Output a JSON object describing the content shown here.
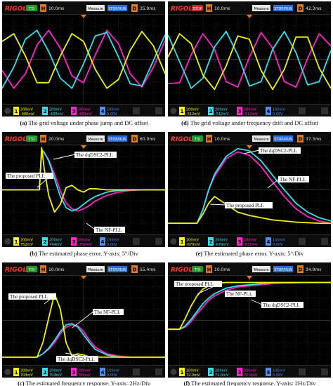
{
  "scope": {
    "brand": "RIGOL",
    "run_states": [
      "T'D",
      "STOP",
      "T'D",
      "T'D",
      "T'D",
      "T'D"
    ],
    "measure_label": "Measure",
    "stop_run_label": "STOP/RUN",
    "colors": {
      "ch1": "#f2f20a",
      "ch2": "#2ee2ee",
      "ch3": "#ff22cc",
      "grid": "#3a3a3a",
      "grid_axis": "#5e5e5e"
    }
  },
  "panels": [
    {
      "id": "a",
      "timebase": "10.0ms",
      "delay": "35.9ms",
      "channels": [
        {
          "n": "1",
          "scale": "200mV",
          "offset": "-480mV",
          "color": "#f2f20a"
        },
        {
          "n": "2",
          "scale": "200mV",
          "offset": "-480mV",
          "color": "#2ee2ee"
        },
        {
          "n": "3",
          "scale": "200mV",
          "offset": "-480mV",
          "color": "#ff22cc"
        },
        {
          "n": "4",
          "scale": "100mV",
          "offset": "0.00V",
          "color": "#4a8cf0"
        }
      ],
      "caption_id": "(a)",
      "caption_text": "The grid voltage under phase jump and DC offset",
      "labels": []
    },
    {
      "id": "d",
      "timebase": "10.0ms",
      "delay": "42.3ms",
      "channels": [
        {
          "n": "1",
          "scale": "200mV",
          "offset": "-512mV",
          "color": "#f2f20a"
        },
        {
          "n": "2",
          "scale": "200mV",
          "offset": "-512mV",
          "color": "#2ee2ee"
        },
        {
          "n": "3",
          "scale": "200mV",
          "offset": "-512mV",
          "color": "#ff22cc"
        },
        {
          "n": "4",
          "scale": "100mV",
          "offset": "0.00V",
          "color": "#4a8cf0"
        }
      ],
      "caption_id": "(d)",
      "caption_text": "The grid voltage under frequency drift and DC offset",
      "labels": []
    },
    {
      "id": "b",
      "timebase": "20.0ms",
      "delay": "60.0ms",
      "channels": [
        {
          "n": "1",
          "scale": "200mV",
          "offset": "752mV",
          "color": "#f2f20a"
        },
        {
          "n": "2",
          "scale": "200mV",
          "offset": "744mV",
          "color": "#2ee2ee"
        },
        {
          "n": "3",
          "scale": "200mV",
          "offset": "-752mV",
          "color": "#ff22cc"
        },
        {
          "n": "4",
          "scale": "100mV",
          "offset": "0.00V",
          "color": "#4a8cf0"
        }
      ],
      "caption_id": "(b)",
      "caption_text": "The estimated phase error. Y-axis: 5°/Div",
      "labels": [
        "The dqDSC2-PLL",
        "The proposed PLL",
        "The NF-PLL"
      ]
    },
    {
      "id": "e",
      "timebase": "10.0ms",
      "delay": "37.3ms",
      "channels": [
        {
          "n": "1",
          "scale": "200mV",
          "offset": "-679mV",
          "color": "#f2f20a"
        },
        {
          "n": "2",
          "scale": "200mV",
          "offset": "-679mV",
          "color": "#2ee2ee"
        },
        {
          "n": "3",
          "scale": "200mV",
          "offset": "-672mV",
          "color": "#ff22cc"
        },
        {
          "n": "4",
          "scale": "100mV",
          "offset": "0.00V",
          "color": "#4a8cf0"
        }
      ],
      "caption_id": "(e)",
      "caption_text": "The estimated phase error. Y-axis: 5°/Div",
      "labels": [
        "The dqDSC2-PLL",
        "The NF-PLL",
        "The proposed PLL"
      ]
    },
    {
      "id": "c",
      "timebase": "10.0ms",
      "delay": "55.4ms",
      "channels": [
        {
          "n": "1",
          "scale": "200mV",
          "offset": "704mV",
          "color": "#f2f20a"
        },
        {
          "n": "2",
          "scale": "200mV",
          "offset": "704mV",
          "color": "#2ee2ee"
        },
        {
          "n": "3",
          "scale": "200mV",
          "offset": "704mV",
          "color": "#ff22cc"
        },
        {
          "n": "4",
          "scale": "100mV",
          "offset": "0.00V",
          "color": "#4a8cf0"
        }
      ],
      "caption_id": "(c)",
      "caption_text": "The estimated frequency response. Y-axis: 2Hz/Div",
      "labels": [
        "The proposed PLL",
        "The NF-PLL",
        "The dqDSC2-PLL"
      ]
    },
    {
      "id": "f",
      "timebase": "10.0ms",
      "delay": "34.9ms",
      "channels": [
        {
          "n": "1",
          "scale": "200mV",
          "offset": "72.0mV",
          "color": "#f2f20a"
        },
        {
          "n": "2",
          "scale": "200mV",
          "offset": "72.0mV",
          "color": "#2ee2ee"
        },
        {
          "n": "3",
          "scale": "200mV",
          "offset": "72.0mV",
          "color": "#ff22cc"
        },
        {
          "n": "4",
          "scale": "100mV",
          "offset": "0.00V",
          "color": "#4a8cf0"
        }
      ],
      "caption_id": "(f)",
      "caption_text": "The estimated frequency response. Y-axis: 2Hz/Div",
      "labels": [
        "The proposed PLL",
        "The NF-PLL",
        "The dqDSC2-PLL"
      ]
    }
  ],
  "chart_data": [
    {
      "panel": "a",
      "type": "line",
      "x": [
        0,
        1,
        2,
        3,
        4,
        5,
        6,
        7,
        8,
        9,
        10,
        11,
        12,
        13,
        14
      ],
      "xlim": [
        0,
        14
      ],
      "ylim": [
        0,
        8
      ],
      "grid": true,
      "series": [
        {
          "values": [
            5.6,
            6.3,
            4.3,
            1.9,
            1.9,
            4.3,
            6.3,
            5.6,
            3.1,
            1.4,
            2.2,
            4.8,
            6.5,
            5.2,
            2.7
          ]
        },
        {
          "values": [
            1.4,
            3.3,
            5.8,
            6.6,
            4.7,
            2.3,
            1.4,
            3.6,
            6.1,
            6.4,
            4.2,
            1.8,
            1.6,
            3.9,
            6.2
          ]
        },
        {
          "values": [
            3.0,
            1.4,
            2.7,
            5.3,
            6.6,
            5.0,
            2.5,
            1.9,
            4.4,
            6.6,
            5.4,
            2.7,
            1.5,
            3.3,
            5.7
          ]
        }
      ]
    },
    {
      "panel": "d",
      "type": "line",
      "x": [
        0,
        1,
        2,
        3,
        4,
        5,
        6,
        7,
        8,
        9,
        10,
        11,
        12,
        13,
        14
      ],
      "xlim": [
        0,
        14
      ],
      "ylim": [
        0,
        8
      ],
      "grid": true,
      "series": [
        {
          "values": [
            4.2,
            6.3,
            5.4,
            2.6,
            1.3,
            3.4,
            6.1,
            5.8,
            3.0,
            1.3,
            3.1,
            6.0,
            6.0,
            3.2,
            1.4
          ]
        },
        {
          "values": [
            6.2,
            3.8,
            1.4,
            2.3,
            5.1,
            6.5,
            4.4,
            1.6,
            2.0,
            4.9,
            6.5,
            4.6,
            1.7,
            2.0,
            4.8
          ]
        },
        {
          "values": [
            1.8,
            1.9,
            4.4,
            6.3,
            4.9,
            2.0,
            1.5,
            4.2,
            6.4,
            5.0,
            2.0,
            1.5,
            4.1,
            6.3,
            5.2
          ]
        }
      ]
    },
    {
      "panel": "b",
      "type": "line",
      "x": [
        0,
        2,
        3.2,
        3.4,
        3.6,
        4,
        4.5,
        5,
        5.5,
        6,
        6.5,
        7,
        7.5,
        8,
        9,
        10,
        11,
        12,
        14
      ],
      "xlim": [
        0,
        14
      ],
      "ylim": [
        -4,
        4
      ],
      "grid": true,
      "series": [
        {
          "values": [
            0,
            0,
            0,
            3.8,
            2.0,
            -0.5,
            -2.0,
            -1.3,
            0.2,
            0.4,
            0.0,
            -0.2,
            0.1,
            0.1,
            0,
            0,
            0,
            0,
            0
          ]
        },
        {
          "values": [
            0,
            0,
            0,
            3.6,
            3.4,
            2.6,
            1.0,
            -0.6,
            -1.6,
            -1.9,
            -1.7,
            -1.3,
            -0.9,
            -0.6,
            -0.2,
            -0.05,
            0,
            0,
            0
          ]
        },
        {
          "values": [
            0,
            0,
            0,
            3.4,
            3.3,
            2.7,
            1.4,
            -0.1,
            -1.2,
            -1.7,
            -1.9,
            -1.7,
            -1.4,
            -1.0,
            -0.5,
            -0.2,
            -0.05,
            0,
            0
          ]
        }
      ]
    },
    {
      "panel": "e",
      "type": "line",
      "x": [
        0,
        2.5,
        3,
        3.5,
        4,
        5,
        6,
        7,
        8,
        9,
        10,
        11,
        12,
        13,
        14
      ],
      "xlim": [
        0,
        14
      ],
      "ylim": [
        -4,
        4
      ],
      "grid": true,
      "series": [
        {
          "values": [
            -3.0,
            -3.0,
            -2.2,
            -1.2,
            -0.6,
            -1.3,
            -2.0,
            -2.3,
            -2.5,
            -2.7,
            -2.8,
            -2.9,
            -2.95,
            -3.0,
            -3.0
          ]
        },
        {
          "values": [
            -3.0,
            -3.0,
            -1.8,
            0.0,
            1.4,
            3.0,
            3.7,
            3.5,
            2.6,
            1.3,
            0.0,
            -1.2,
            -2.0,
            -2.5,
            -2.8
          ]
        },
        {
          "values": [
            -3.0,
            -3.0,
            -1.8,
            0.0,
            1.2,
            2.8,
            3.4,
            3.1,
            2.1,
            0.7,
            -0.6,
            -1.7,
            -2.4,
            -2.8,
            -3.0
          ]
        }
      ]
    },
    {
      "panel": "c",
      "type": "line",
      "x": [
        0,
        3,
        3.5,
        4,
        4.5,
        5,
        5.5,
        6,
        6.5,
        7,
        7.5,
        8,
        9,
        10,
        11,
        14
      ],
      "xlim": [
        0,
        14
      ],
      "ylim": [
        -4,
        4
      ],
      "grid": true,
      "series": [
        {
          "values": [
            -3.3,
            -3.3,
            -2.0,
            0.2,
            2.4,
            1.0,
            -2.0,
            -3.2,
            -3.0,
            -3.1,
            -3.3,
            -3.3,
            -3.3,
            -3.3,
            -3.3,
            -3.3
          ]
        },
        {
          "values": [
            -3.3,
            -3.3,
            -3.0,
            -2.5,
            -1.8,
            -1.0,
            -0.4,
            -0.3,
            -0.6,
            -1.3,
            -2.0,
            -2.6,
            -3.1,
            -3.3,
            -3.3,
            -3.3
          ]
        },
        {
          "values": [
            -3.3,
            -3.3,
            -3.0,
            -2.6,
            -2.0,
            -1.2,
            -0.6,
            -0.4,
            -0.5,
            -1.0,
            -1.8,
            -2.4,
            -3.0,
            -3.2,
            -3.3,
            -3.3
          ]
        }
      ]
    },
    {
      "panel": "f",
      "type": "line",
      "x": [
        0,
        1,
        1.5,
        2,
        2.5,
        3,
        3.5,
        4,
        5,
        6,
        7,
        8,
        9,
        10,
        12,
        14
      ],
      "xlim": [
        0,
        14
      ],
      "ylim": [
        -4,
        4
      ],
      "grid": true,
      "series": [
        {
          "values": [
            -0.8,
            -0.8,
            0.2,
            1.3,
            2.2,
            2.8,
            3.1,
            3.3,
            3.4,
            3.4,
            3.4,
            3.4,
            3.4,
            3.4,
            3.4,
            3.4
          ]
        },
        {
          "values": [
            -0.8,
            -0.8,
            -0.5,
            0.1,
            0.8,
            1.5,
            2.0,
            2.4,
            2.9,
            3.1,
            3.2,
            3.3,
            3.4,
            3.4,
            3.4,
            3.4
          ]
        },
        {
          "values": [
            -0.8,
            -0.8,
            -0.6,
            -0.1,
            0.6,
            1.2,
            1.8,
            2.2,
            2.7,
            3.0,
            3.1,
            3.2,
            3.3,
            3.35,
            3.4,
            3.4
          ]
        }
      ]
    }
  ]
}
